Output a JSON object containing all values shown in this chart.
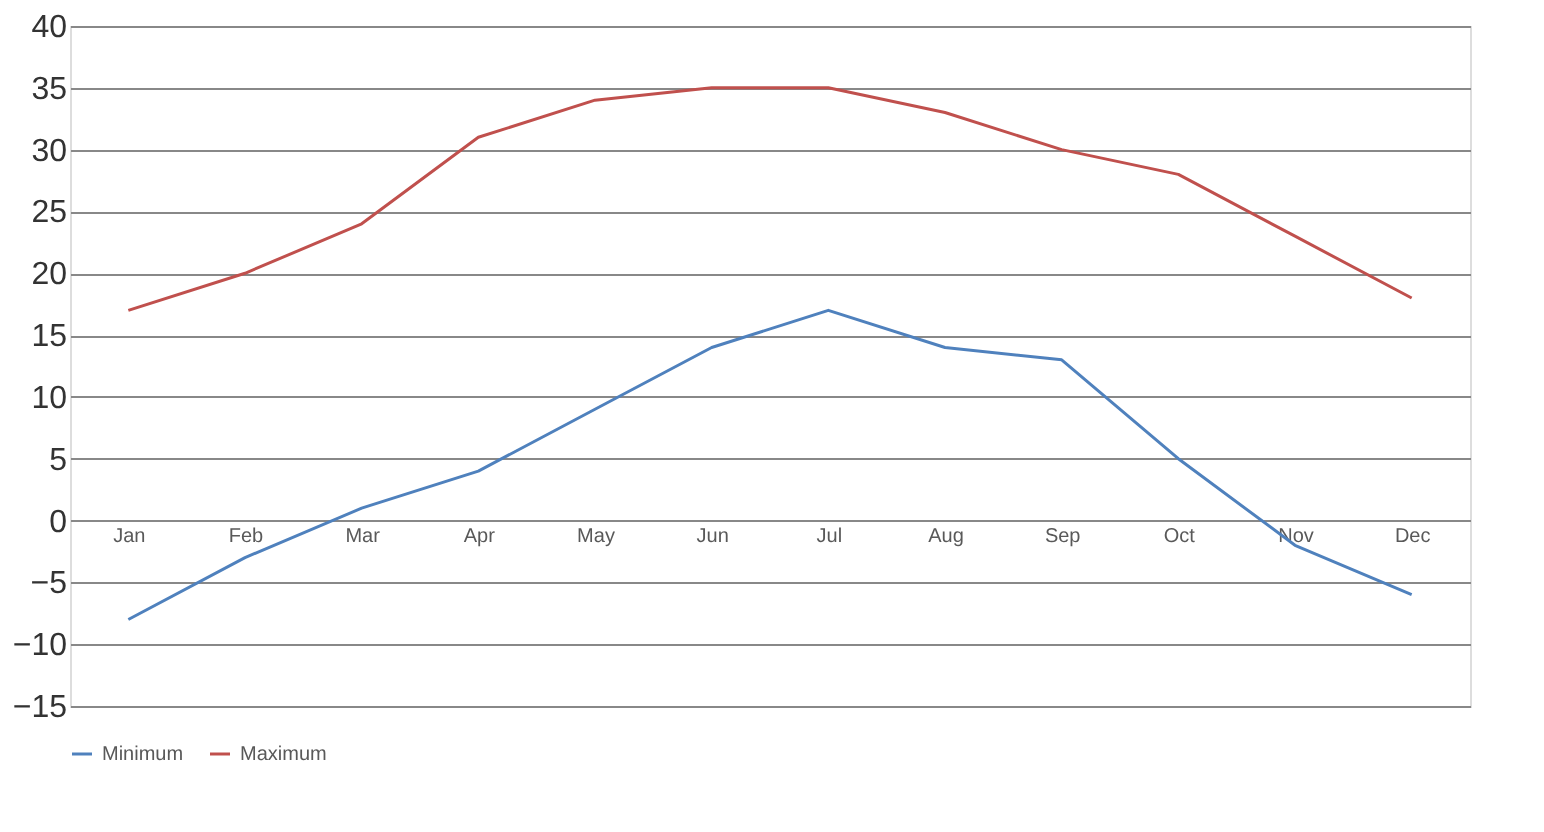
{
  "chart_data": {
    "type": "line",
    "categories": [
      "Jan",
      "Feb",
      "Mar",
      "Apr",
      "May",
      "Jun",
      "Jul",
      "Aug",
      "Sep",
      "Oct",
      "Nov",
      "Dec"
    ],
    "series": [
      {
        "name": "Minimum",
        "color": "#4f81bd",
        "values": [
          -8,
          -3,
          1,
          4,
          9,
          14,
          17,
          14,
          13,
          5,
          -2,
          -6
        ]
      },
      {
        "name": "Maximum",
        "color": "#c0504d",
        "values": [
          17,
          20,
          24,
          31,
          34,
          35,
          35,
          33,
          30,
          28,
          23,
          18
        ]
      }
    ],
    "ylim": [
      -15,
      40
    ],
    "yticks": [
      -15,
      -10,
      -5,
      0,
      5,
      10,
      15,
      20,
      25,
      30,
      35,
      40
    ],
    "grid": "y",
    "legend": "bottom",
    "marker": "none",
    "line_style": "solid"
  }
}
